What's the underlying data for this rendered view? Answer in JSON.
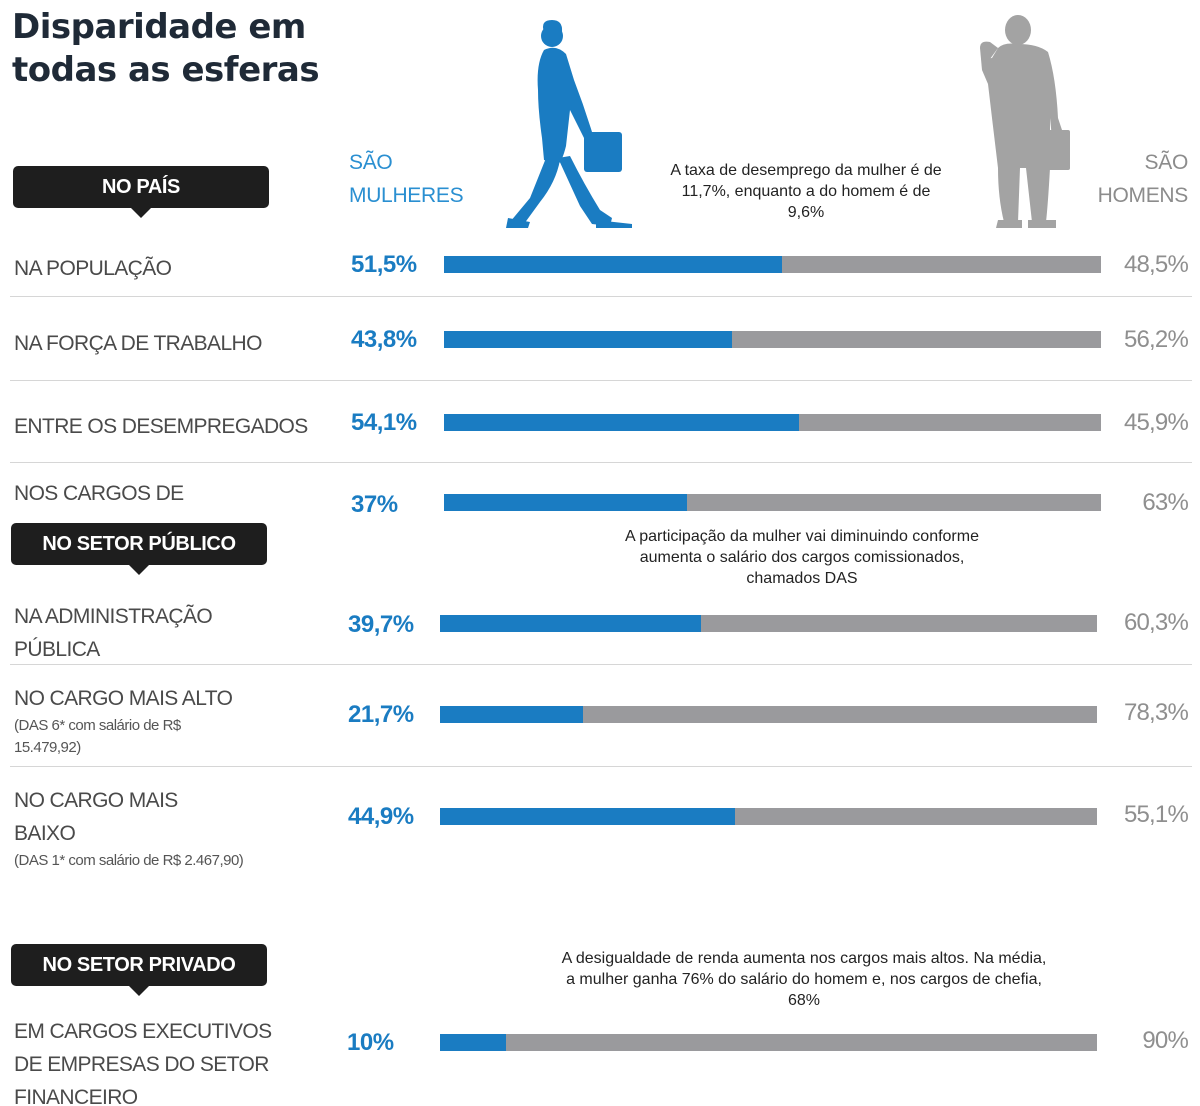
{
  "title": "Disparidade em todas as esferas",
  "headers": {
    "women": "SÃO MULHERES",
    "men": "SÃO HOMENS"
  },
  "icons": {
    "woman": "woman-silhouette-icon",
    "man": "man-silhouette-icon"
  },
  "colors": {
    "women": "#1a7cc2",
    "men": "#9a9a9d",
    "badge": "#1e1e1e"
  },
  "sections": [
    {
      "label": "NO PAÍS",
      "note": "A taxa de desemprego da mulher é de 11,7%, enquanto a do homem é de 9,6%"
    },
    {
      "label": "NO SETOR PÚBLICO",
      "note": "A participação da mulher vai diminuindo conforme aumenta o salário dos cargos comissionados, chamados DAS"
    },
    {
      "label": "NO SETOR PRIVADO",
      "note": "A desigualdade de renda aumenta nos cargos mais altos. Na média, a mulher ganha 76% do salário do homem e, nos cargos de chefia, 68%"
    }
  ],
  "rows": [
    {
      "label": "NA POPULAÇÃO",
      "sub": "",
      "women_text": "51,5%",
      "men_text": "48,5%"
    },
    {
      "label": "NA FORÇA DE TRABALHO",
      "sub": "",
      "women_text": "43,8%",
      "men_text": "56,2%"
    },
    {
      "label": "ENTRE OS DESEMPREGADOS",
      "sub": "",
      "women_text": "54,1%",
      "men_text": "45,9%"
    },
    {
      "label": "NOS CARGOS DE",
      "sub": "",
      "women_text": "37%",
      "men_text": "63%"
    },
    {
      "label": "NA ADMINISTRAÇÃO PÚBLICA",
      "sub": "",
      "women_text": "39,7%",
      "men_text": "60,3%"
    },
    {
      "label": "NO CARGO MAIS ALTO",
      "sub": "(DAS 6* com salário de R$ 15.479,92)",
      "women_text": "21,7%",
      "men_text": "78,3%"
    },
    {
      "label": "NO CARGO MAIS BAIXO",
      "sub": "(DAS 1* com salário de R$ 2.467,90)",
      "women_text": "44,9%",
      "men_text": "55,1%"
    },
    {
      "label": "EM CARGOS EXECUTIVOS DE EMPRESAS DO SETOR FINANCEIRO",
      "sub": "",
      "women_text": "10%",
      "men_text": "90%"
    }
  ],
  "chart_data": {
    "type": "bar",
    "stacked": true,
    "orientation": "horizontal",
    "title": "Disparidade em todas as esferas",
    "categories": [
      "NA POPULAÇÃO",
      "NA FORÇA DE TRABALHO",
      "ENTRE OS DESEMPREGADOS",
      "NOS CARGOS DE",
      "NA ADMINISTRAÇÃO PÚBLICA",
      "NO CARGO MAIS ALTO",
      "NO CARGO MAIS BAIXO",
      "EM CARGOS EXECUTIVOS DE EMPRESAS DO SETOR FINANCEIRO"
    ],
    "series": [
      {
        "name": "SÃO MULHERES",
        "values": [
          51.5,
          43.8,
          54.1,
          37,
          39.7,
          21.7,
          44.9,
          10
        ]
      },
      {
        "name": "SÃO HOMENS",
        "values": [
          48.5,
          56.2,
          45.9,
          63,
          60.3,
          78.3,
          55.1,
          90
        ]
      }
    ],
    "xlim": [
      0,
      100
    ],
    "grid": false
  }
}
